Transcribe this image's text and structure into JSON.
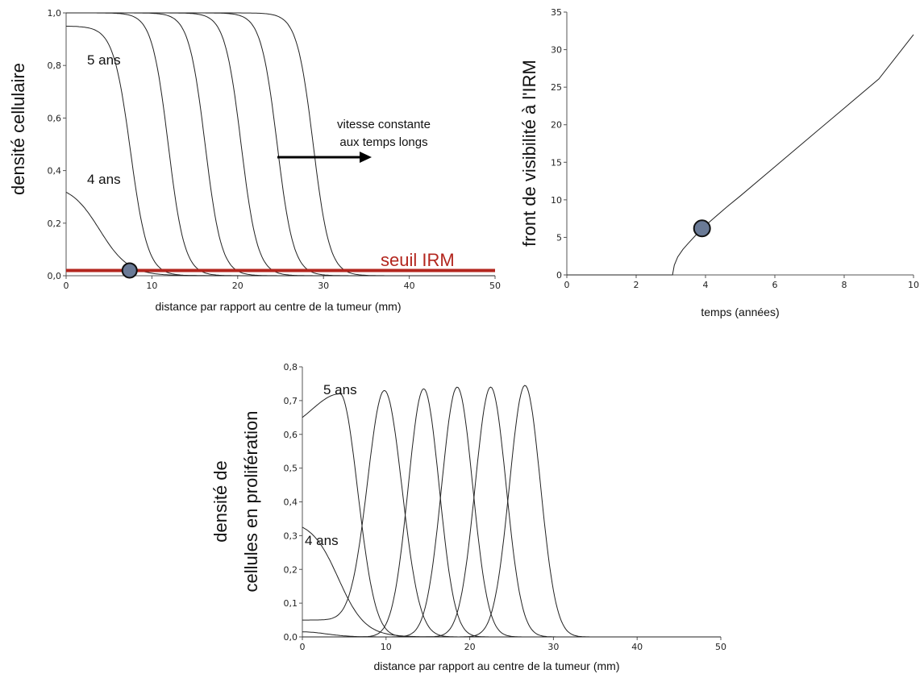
{
  "chart_data": [
    {
      "id": "density",
      "type": "line",
      "xlabel": "distance par rapport au centre de la tumeur (mm)",
      "ylabel": "densité cellulaire",
      "xlim": [
        0,
        50
      ],
      "ylim": [
        0,
        1
      ],
      "xticks": [
        "0",
        "10",
        "20",
        "30",
        "40",
        "50"
      ],
      "yticks": [
        "0,0",
        "0,2",
        "0,4",
        "0,6",
        "0,8",
        "1,0"
      ],
      "grid": false,
      "profiles": [
        {
          "amp": 0.35,
          "x50": 3.9,
          "w": 1.7
        },
        {
          "amp": 0.95,
          "x50": 7.5,
          "w": 1.0
        },
        {
          "amp": 1.0,
          "x50": 11.9,
          "w": 0.95
        },
        {
          "amp": 1.0,
          "x50": 16.2,
          "w": 0.95
        },
        {
          "amp": 1.0,
          "x50": 20.4,
          "w": 0.95
        },
        {
          "amp": 1.0,
          "x50": 24.6,
          "w": 0.95
        },
        {
          "amp": 1.0,
          "x50": 28.8,
          "w": 0.95
        }
      ],
      "threshold": {
        "y": 0.02,
        "label": "seuil IRM",
        "color": "#b3261e"
      },
      "marker": {
        "x": 7.4,
        "y": 0.02,
        "color": "#6a7a96"
      },
      "annotations": {
        "five_years": "5 ans",
        "four_years": "4 ans",
        "note_line1": "vitesse constante",
        "note_line2": "aux temps longs"
      }
    },
    {
      "id": "front",
      "type": "line",
      "xlabel": "temps (années)",
      "ylabel": "front de visibilité à l'IRM",
      "xlim": [
        0,
        10
      ],
      "ylim": [
        0,
        35
      ],
      "xticks": [
        "0",
        "2",
        "4",
        "6",
        "8",
        "10"
      ],
      "yticks": [
        "0",
        "5",
        "10",
        "15",
        "20",
        "25",
        "30",
        "35"
      ],
      "grid": false,
      "x": [
        0,
        3.05,
        3.1,
        3.2,
        3.35,
        3.5,
        3.7,
        3.9,
        4.2,
        4.6,
        5.0,
        6.0,
        7.0,
        8.0,
        9.0,
        10.0
      ],
      "y": [
        0,
        0,
        1.3,
        2.4,
        3.4,
        4.2,
        5.2,
        6.2,
        7.4,
        9.0,
        10.5,
        14.4,
        18.3,
        22.2,
        26.1,
        32.0
      ],
      "marker": {
        "x": 3.9,
        "y": 6.2,
        "color": "#6a7a96"
      }
    },
    {
      "id": "proliferation",
      "type": "line",
      "xlabel": "distance par rapport au centre de la tumeur (mm)",
      "ylabel_line1": "densité de",
      "ylabel_line2": "cellules en prolifération",
      "xlim": [
        0,
        50
      ],
      "ylim": [
        0,
        0.8
      ],
      "xticks": [
        "0",
        "10",
        "20",
        "30",
        "40",
        "50"
      ],
      "yticks": [
        "0,0",
        "0,1",
        "0,2",
        "0,3",
        "0,4",
        "0,5",
        "0,6",
        "0,7",
        "0,8"
      ],
      "grid": false,
      "series": [
        {
          "kind": "tail",
          "start": 0.015,
          "end": 0.0
        },
        {
          "kind": "decay",
          "amp": 0.325,
          "x50": 4.3,
          "w": 1.6
        },
        {
          "kind": "wave",
          "base": 0.6,
          "peak": 0.72,
          "cx": 4.5,
          "sigma": 3.4
        },
        {
          "kind": "wave",
          "base": 0.05,
          "peak": 0.73,
          "cx": 9.8,
          "sigma": 2.0
        },
        {
          "kind": "gauss",
          "peak": 0.735,
          "cx": 14.5,
          "sigma": 1.85
        },
        {
          "kind": "gauss",
          "peak": 0.74,
          "cx": 18.5,
          "sigma": 1.85
        },
        {
          "kind": "gauss",
          "peak": 0.74,
          "cx": 22.5,
          "sigma": 1.85
        },
        {
          "kind": "gauss",
          "peak": 0.745,
          "cx": 26.6,
          "sigma": 1.85
        }
      ],
      "annotations": {
        "five_years": "5 ans",
        "four_years": "4 ans"
      }
    }
  ]
}
